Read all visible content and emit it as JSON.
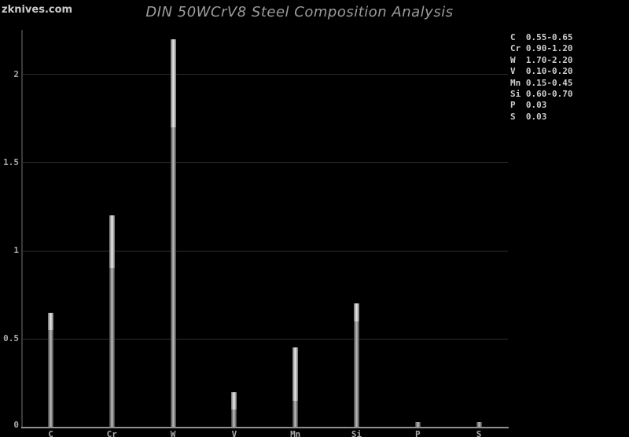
{
  "watermark": {
    "text": "zknives.com"
  },
  "header": {
    "title": "DIN 50WCrV8 Steel Composition Analysis"
  },
  "colors": {
    "background": "#000000",
    "title_text": "#9c9c9c",
    "watermark_text": "#cacaca",
    "axis_label_text": "#a8a8a8",
    "legend_text": "#cccccc",
    "gridline": "#2d2d2d",
    "y_axis_line": "#3a3a3a",
    "x_axis_line": "#909090",
    "bar_body_edge": "#3a3a3a",
    "bar_body_center": "#b4b4b4",
    "bar_range_edge": "#6e6e6e",
    "bar_range_center": "#e2e2e2"
  },
  "chart_data": {
    "type": "bar",
    "title": "DIN 50WCrV8 Steel Composition Analysis",
    "categories": [
      "C",
      "Cr",
      "W",
      "V",
      "Mn",
      "Si",
      "P",
      "S"
    ],
    "series": [
      {
        "name": "composition_min",
        "values": [
          0.55,
          0.9,
          1.7,
          0.1,
          0.15,
          0.6,
          0.03,
          0.03
        ]
      },
      {
        "name": "composition_max",
        "values": [
          0.65,
          1.2,
          2.2,
          0.2,
          0.45,
          0.7,
          0.03,
          0.03
        ]
      }
    ],
    "legend_lines": [
      "C  0.55-0.65",
      "Cr 0.90-1.20",
      "W  1.70-2.20",
      "V  0.10-0.20",
      "Mn 0.15-0.45",
      "Si 0.60-0.70",
      "P  0.03",
      "S  0.03"
    ],
    "xlabel": "",
    "ylabel": "",
    "yticks": [
      0,
      0.5,
      1,
      1.5,
      2
    ],
    "ylim": [
      0,
      2.25
    ],
    "grid": true,
    "legend_position": "top-right"
  }
}
